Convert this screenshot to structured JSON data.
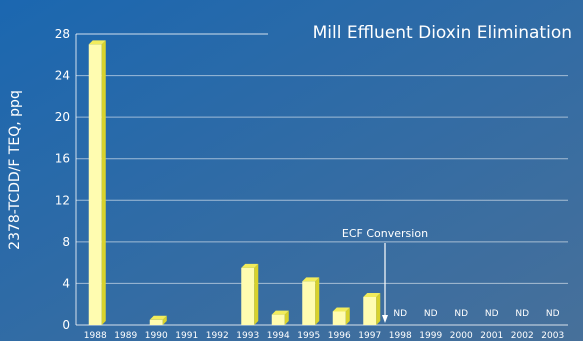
{
  "chart_data": {
    "type": "bar",
    "title": "Mill Effluent Dioxin Elimination",
    "ylabel": "2378-TCDD/F TEQ, ppq",
    "xlabel": "",
    "ylim": [
      0,
      28
    ],
    "yticks": [
      0,
      4,
      8,
      12,
      16,
      20,
      24,
      28
    ],
    "grid": true,
    "categories": [
      "1988",
      "1989",
      "1990",
      "1991",
      "1992",
      "1993",
      "1994",
      "1995",
      "1996",
      "1997",
      "1998",
      "1999",
      "2000",
      "2001",
      "2002",
      "2003"
    ],
    "values": [
      27,
      null,
      0.5,
      null,
      null,
      5.5,
      1.0,
      4.2,
      1.3,
      2.7,
      null,
      null,
      null,
      null,
      null,
      null
    ],
    "bar_labels": [
      "",
      "",
      "",
      "",
      "",
      "",
      "",
      "",
      "",
      "",
      "ND",
      "ND",
      "ND",
      "ND",
      "ND",
      "ND"
    ],
    "annotation": {
      "text": "ECF Conversion",
      "between": [
        "1997",
        "1998"
      ]
    },
    "colors": {
      "background_top": "#1b67b0",
      "background_bottom": "#47709a",
      "bar_front": "#fffcb0",
      "bar_side": "#d8d22c",
      "bar_top": "#f2ec5c",
      "text": "#ffffff",
      "grid": "#ffffff"
    }
  }
}
